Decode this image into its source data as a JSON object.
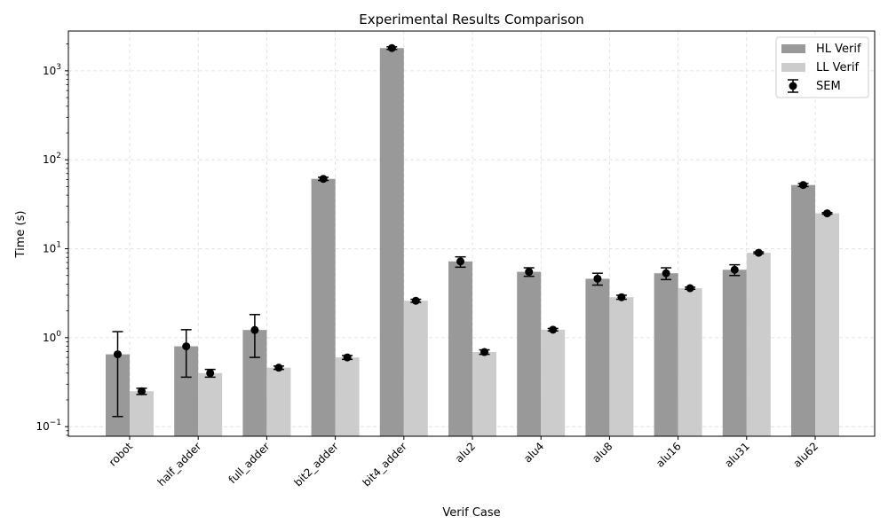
{
  "chart_data": {
    "type": "bar",
    "title": "Experimental Results Comparison",
    "xlabel": "Verif Case",
    "ylabel": "Time (s)",
    "yscale": "log",
    "ylim": [
      0.078,
      2800
    ],
    "grid": true,
    "legend_position": "top-right",
    "categories": [
      "robot",
      "half_adder",
      "full_adder",
      "bit2_adder",
      "bit4_adder",
      "alu2",
      "alu4",
      "alu8",
      "alu16",
      "alu31",
      "alu62"
    ],
    "yticks": [
      {
        "value": 0.1,
        "base": "10",
        "exp": "−1"
      },
      {
        "value": 1,
        "base": "10",
        "exp": "0"
      },
      {
        "value": 10,
        "base": "10",
        "exp": "1"
      },
      {
        "value": 100,
        "base": "10",
        "exp": "2"
      },
      {
        "value": 1000,
        "base": "10",
        "exp": "3"
      }
    ],
    "series": [
      {
        "name": "HL Verif",
        "color": "#999999",
        "values": [
          0.65,
          0.8,
          1.22,
          61,
          1800,
          7.2,
          5.5,
          4.6,
          5.3,
          5.8,
          52
        ],
        "err_low": [
          0.13,
          0.36,
          0.6,
          58.5,
          1740,
          6.2,
          4.9,
          3.9,
          4.5,
          5.0,
          50
        ],
        "err_high": [
          1.17,
          1.23,
          1.82,
          63.5,
          1860,
          8.1,
          6.1,
          5.3,
          6.1,
          6.6,
          54
        ]
      },
      {
        "name": "LL Verif",
        "color": "#cccccc",
        "values": [
          0.25,
          0.4,
          0.46,
          0.6,
          2.6,
          0.69,
          1.23,
          2.85,
          3.6,
          9.0,
          25
        ],
        "err_low": [
          0.23,
          0.36,
          0.44,
          0.57,
          2.5,
          0.65,
          1.19,
          2.7,
          3.5,
          8.8,
          24.5
        ],
        "err_high": [
          0.27,
          0.44,
          0.48,
          0.63,
          2.7,
          0.73,
          1.27,
          3.0,
          3.7,
          9.2,
          25.5
        ]
      }
    ],
    "legend": {
      "entries": [
        {
          "label": "HL Verif",
          "kind": "bar",
          "color": "#999999"
        },
        {
          "label": "LL Verif",
          "kind": "bar",
          "color": "#cccccc"
        },
        {
          "label": "SEM",
          "kind": "errorbar",
          "color": "#000000"
        }
      ]
    }
  }
}
